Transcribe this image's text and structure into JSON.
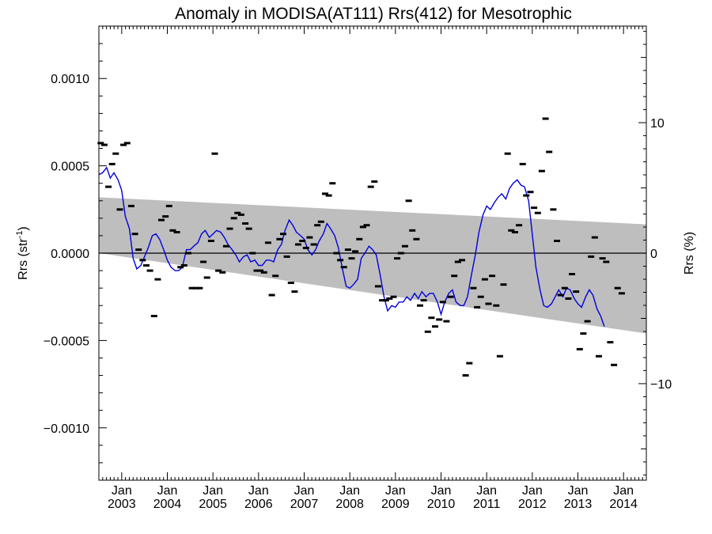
{
  "chart_data": {
    "type": "scatter",
    "title": "Anomaly in MODISA(AT111) Rrs(412) for Mesotrophic",
    "ylabel_left": {
      "base": "Rrs (str",
      "sup": "-1",
      "close": ")"
    },
    "ylabel_right": "Rrs (%)",
    "xlim": [
      2002.5,
      2014.5
    ],
    "ylim_left": [
      -0.0013,
      0.0013
    ],
    "ylim_right": [
      -17.4,
      17.4
    ],
    "x_ticks": [
      {
        "value": 2003.0,
        "month": "Jan",
        "year": "2003"
      },
      {
        "value": 2004.0,
        "month": "Jan",
        "year": "2004"
      },
      {
        "value": 2005.0,
        "month": "Jan",
        "year": "2005"
      },
      {
        "value": 2006.0,
        "month": "Jan",
        "year": "2006"
      },
      {
        "value": 2007.0,
        "month": "Jan",
        "year": "2007"
      },
      {
        "value": 2008.0,
        "month": "Jan",
        "year": "2008"
      },
      {
        "value": 2009.0,
        "month": "Jan",
        "year": "2009"
      },
      {
        "value": 2010.0,
        "month": "Jan",
        "year": "2010"
      },
      {
        "value": 2011.0,
        "month": "Jan",
        "year": "2011"
      },
      {
        "value": 2012.0,
        "month": "Jan",
        "year": "2012"
      },
      {
        "value": 2013.0,
        "month": "Jan",
        "year": "2013"
      },
      {
        "value": 2014.0,
        "month": "Jan",
        "year": "2014"
      }
    ],
    "y_ticks_left": [
      {
        "value": 0.001,
        "label": "0.0010"
      },
      {
        "value": 0.0005,
        "label": "0.0005"
      },
      {
        "value": 0.0,
        "label": "0.0000"
      },
      {
        "value": -0.0005,
        "label": "−0.0005"
      },
      {
        "value": -0.001,
        "label": "−0.0010"
      }
    ],
    "y_ticks_right": [
      {
        "value": 10,
        "label": "10"
      },
      {
        "value": 0,
        "label": "0"
      },
      {
        "value": -10,
        "label": "−10"
      }
    ],
    "reference_line": 0.0,
    "confidence_band": {
      "upper": [
        [
          2002.5,
          0.00032
        ],
        [
          2014.5,
          0.000165
        ]
      ],
      "lower": [
        [
          2002.5,
          0.0
        ],
        [
          2014.5,
          -0.00046
        ]
      ],
      "color": "#bebebe"
    },
    "colors": {
      "points": "#000000",
      "smooth": "#0000dd",
      "band": "#bebebe",
      "zero": "#000000"
    },
    "points": [
      [
        2002.54,
        0.00063
      ],
      [
        2002.62,
        0.00062
      ],
      [
        2002.71,
        0.00038
      ],
      [
        2002.79,
        0.00051
      ],
      [
        2002.87,
        0.00057
      ],
      [
        2002.96,
        0.00025
      ],
      [
        2003.04,
        0.00062
      ],
      [
        2003.12,
        0.00063
      ],
      [
        2003.21,
        0.00027
      ],
      [
        2003.29,
        0.00011
      ],
      [
        2003.37,
        2e-05
      ],
      [
        2003.46,
        -4e-05
      ],
      [
        2003.54,
        -7e-05
      ],
      [
        2003.62,
        -0.0001
      ],
      [
        2003.71,
        -0.00036
      ],
      [
        2003.79,
        -0.00015
      ],
      [
        2003.87,
        0.00019
      ],
      [
        2003.96,
        0.00021
      ],
      [
        2004.04,
        0.00027
      ],
      [
        2004.12,
        0.00013
      ],
      [
        2004.21,
        0.00012
      ],
      [
        2004.29,
        -8e-05
      ],
      [
        2004.37,
        -7e-05
      ],
      [
        2004.46,
        0.0
      ],
      [
        2004.54,
        -0.0002
      ],
      [
        2004.62,
        -0.0002
      ],
      [
        2004.71,
        -0.0002
      ],
      [
        2004.79,
        -5e-05
      ],
      [
        2004.87,
        -0.00014
      ],
      [
        2004.96,
        7e-05
      ],
      [
        2005.04,
        0.00057
      ],
      [
        2005.12,
        -0.0001
      ],
      [
        2005.21,
        -0.00011
      ],
      [
        2005.29,
        4e-05
      ],
      [
        2005.37,
        0.00014
      ],
      [
        2005.46,
        0.0002
      ],
      [
        2005.54,
        0.00023
      ],
      [
        2005.62,
        0.00022
      ],
      [
        2005.71,
        0.00017
      ],
      [
        2005.79,
        0.00014
      ],
      [
        2005.87,
        0.0
      ],
      [
        2005.96,
        -0.0001
      ],
      [
        2006.04,
        -0.0001
      ],
      [
        2006.12,
        -0.00011
      ],
      [
        2006.21,
        6e-05
      ],
      [
        2006.29,
        -0.00024
      ],
      [
        2006.37,
        -0.00013
      ],
      [
        2006.46,
        8e-05
      ],
      [
        2006.54,
        0.00011
      ],
      [
        2006.62,
        -2e-05
      ],
      [
        2006.71,
        -0.00017
      ],
      [
        2006.79,
        -0.00022
      ],
      [
        2006.87,
        5e-05
      ],
      [
        2006.96,
        7e-05
      ],
      [
        2007.04,
        3e-05
      ],
      [
        2007.12,
        9e-05
      ],
      [
        2007.21,
        5e-05
      ],
      [
        2007.29,
        0.00016
      ],
      [
        2007.37,
        0.00018
      ],
      [
        2007.46,
        0.00034
      ],
      [
        2007.54,
        0.00033
      ],
      [
        2007.62,
        0.0004
      ],
      [
        2007.71,
        0.0
      ],
      [
        2007.79,
        -4e-05
      ],
      [
        2007.87,
        -8e-05
      ],
      [
        2007.96,
        2e-05
      ],
      [
        2008.04,
        -3e-05
      ],
      [
        2008.12,
        1e-05
      ],
      [
        2008.21,
        8e-05
      ],
      [
        2008.29,
        0.00015
      ],
      [
        2008.37,
        0.00016
      ],
      [
        2008.46,
        0.00038
      ],
      [
        2008.54,
        0.00041
      ],
      [
        2008.62,
        -0.00019
      ],
      [
        2008.71,
        -0.00027
      ],
      [
        2008.79,
        -0.00027
      ],
      [
        2008.87,
        -0.00026
      ],
      [
        2008.96,
        -0.00025
      ],
      [
        2009.04,
        -3e-05
      ],
      [
        2009.12,
        0.0
      ],
      [
        2009.21,
        4e-05
      ],
      [
        2009.29,
        0.0003
      ],
      [
        2009.37,
        0.00013
      ],
      [
        2009.46,
        8e-05
      ],
      [
        2009.54,
        -0.0003
      ],
      [
        2009.62,
        -0.00027
      ],
      [
        2009.71,
        -0.00045
      ],
      [
        2009.79,
        -0.00037
      ],
      [
        2009.87,
        -0.00042
      ],
      [
        2009.96,
        -0.00038
      ],
      [
        2010.04,
        -0.00028
      ],
      [
        2010.12,
        -0.00039
      ],
      [
        2010.21,
        -0.00025
      ],
      [
        2010.29,
        -0.00013
      ],
      [
        2010.37,
        -5e-05
      ],
      [
        2010.46,
        -4e-05
      ],
      [
        2010.54,
        -0.0007
      ],
      [
        2010.62,
        -0.00063
      ],
      [
        2010.71,
        -0.0002
      ],
      [
        2010.79,
        -0.00031
      ],
      [
        2010.87,
        -0.00025
      ],
      [
        2010.96,
        -0.00015
      ],
      [
        2011.04,
        -0.00029
      ],
      [
        2011.12,
        -0.00013
      ],
      [
        2011.21,
        -0.0003
      ],
      [
        2011.29,
        -0.00059
      ],
      [
        2011.37,
        -0.00018
      ],
      [
        2011.46,
        0.00057
      ],
      [
        2011.54,
        0.00013
      ],
      [
        2011.62,
        0.00012
      ],
      [
        2011.71,
        0.00016
      ],
      [
        2011.79,
        0.00051
      ],
      [
        2011.87,
        0.00033
      ],
      [
        2011.96,
        0.00035
      ],
      [
        2012.04,
        0.00026
      ],
      [
        2012.12,
        0.00023
      ],
      [
        2012.21,
        0.00047
      ],
      [
        2012.29,
        0.00077
      ],
      [
        2012.37,
        0.00058
      ],
      [
        2012.46,
        0.00025
      ],
      [
        2012.54,
        7e-05
      ],
      [
        2012.62,
        -0.00024
      ],
      [
        2012.71,
        -0.0002
      ],
      [
        2012.79,
        -0.00026
      ],
      [
        2012.87,
        -0.00012
      ],
      [
        2012.96,
        -0.00022
      ],
      [
        2013.04,
        -0.00055
      ],
      [
        2013.12,
        -0.00046
      ],
      [
        2013.21,
        -0.00039
      ],
      [
        2013.29,
        -2e-05
      ],
      [
        2013.37,
        9e-05
      ],
      [
        2013.46,
        -0.00059
      ],
      [
        2013.54,
        -3e-05
      ],
      [
        2013.62,
        -5e-05
      ],
      [
        2013.71,
        -0.00051
      ],
      [
        2013.79,
        -0.00064
      ],
      [
        2013.87,
        -0.0002
      ],
      [
        2013.96,
        -0.00023
      ]
    ],
    "smooth": [
      [
        2002.5,
        0.00045
      ],
      [
        2002.58,
        0.00046
      ],
      [
        2002.67,
        0.00049
      ],
      [
        2002.75,
        0.00043
      ],
      [
        2002.83,
        0.00046
      ],
      [
        2002.92,
        0.00042
      ],
      [
        2003.0,
        0.00036
      ],
      [
        2003.08,
        0.00021
      ],
      [
        2003.17,
        0.00014
      ],
      [
        2003.25,
        -3e-05
      ],
      [
        2003.33,
        -9e-05
      ],
      [
        2003.42,
        -7e-05
      ],
      [
        2003.5,
        -2e-05
      ],
      [
        2003.58,
        3e-05
      ],
      [
        2003.67,
        0.0001
      ],
      [
        2003.75,
        0.00011
      ],
      [
        2003.83,
        8e-05
      ],
      [
        2003.92,
        2e-05
      ],
      [
        2004.0,
        -4e-05
      ],
      [
        2004.08,
        -8e-05
      ],
      [
        2004.17,
        -0.0001
      ],
      [
        2004.25,
        -0.0001
      ],
      [
        2004.33,
        -8e-05
      ],
      [
        2004.42,
        2e-05
      ],
      [
        2004.5,
        2e-05
      ],
      [
        2004.58,
        4e-05
      ],
      [
        2004.67,
        6e-05
      ],
      [
        2004.75,
        0.00011
      ],
      [
        2004.83,
        0.00013
      ],
      [
        2004.92,
        9e-05
      ],
      [
        2005.0,
        0.00011
      ],
      [
        2005.08,
        0.00013
      ],
      [
        2005.17,
        0.00012
      ],
      [
        2005.25,
        9e-05
      ],
      [
        2005.33,
        5e-05
      ],
      [
        2005.42,
        2e-05
      ],
      [
        2005.5,
        -1e-05
      ],
      [
        2005.58,
        -5e-05
      ],
      [
        2005.67,
        -2e-05
      ],
      [
        2005.75,
        -1e-05
      ],
      [
        2005.83,
        -5e-05
      ],
      [
        2005.92,
        -4e-05
      ],
      [
        2006.0,
        -7e-05
      ],
      [
        2006.08,
        -7e-05
      ],
      [
        2006.17,
        -4e-05
      ],
      [
        2006.25,
        -4e-05
      ],
      [
        2006.33,
        -5e-05
      ],
      [
        2006.42,
        2e-05
      ],
      [
        2006.5,
        5e-05
      ],
      [
        2006.58,
        0.00013
      ],
      [
        2006.67,
        0.00019
      ],
      [
        2006.75,
        0.00016
      ],
      [
        2006.83,
        0.00012
      ],
      [
        2006.92,
        0.0001
      ],
      [
        2007.0,
        8e-05
      ],
      [
        2007.08,
        2e-05
      ],
      [
        2007.17,
        -1e-05
      ],
      [
        2007.25,
        2e-05
      ],
      [
        2007.33,
        7e-05
      ],
      [
        2007.42,
        0.00011
      ],
      [
        2007.5,
        0.00017
      ],
      [
        2007.58,
        0.00014
      ],
      [
        2007.67,
        0.0001
      ],
      [
        2007.75,
        3e-05
      ],
      [
        2007.83,
        -8e-05
      ],
      [
        2007.92,
        -0.00019
      ],
      [
        2008.0,
        -0.0002
      ],
      [
        2008.08,
        -0.00018
      ],
      [
        2008.17,
        -0.00015
      ],
      [
        2008.25,
        -3e-05
      ],
      [
        2008.33,
        0.0
      ],
      [
        2008.42,
        4e-05
      ],
      [
        2008.5,
        2e-05
      ],
      [
        2008.58,
        -1e-05
      ],
      [
        2008.67,
        -0.00013
      ],
      [
        2008.75,
        -0.00025
      ],
      [
        2008.83,
        -0.00033
      ],
      [
        2008.92,
        -0.0003
      ],
      [
        2009.0,
        -0.00031
      ],
      [
        2009.08,
        -0.00028
      ],
      [
        2009.17,
        -0.00028
      ],
      [
        2009.25,
        -0.00025
      ],
      [
        2009.33,
        -0.00027
      ],
      [
        2009.42,
        -0.00023
      ],
      [
        2009.5,
        -0.00026
      ],
      [
        2009.58,
        -0.00022
      ],
      [
        2009.67,
        -0.00025
      ],
      [
        2009.75,
        -0.00023
      ],
      [
        2009.83,
        -0.00023
      ],
      [
        2009.92,
        -0.00028
      ],
      [
        2010.0,
        -0.00035
      ],
      [
        2010.08,
        -0.00028
      ],
      [
        2010.17,
        -0.00023
      ],
      [
        2010.25,
        -0.00021
      ],
      [
        2010.33,
        -0.00028
      ],
      [
        2010.42,
        -0.0003
      ],
      [
        2010.5,
        -0.0003
      ],
      [
        2010.58,
        -0.00025
      ],
      [
        2010.67,
        -0.00012
      ],
      [
        2010.75,
        -1e-05
      ],
      [
        2010.83,
        0.00012
      ],
      [
        2010.92,
        0.00022
      ],
      [
        2011.0,
        0.00027
      ],
      [
        2011.08,
        0.00025
      ],
      [
        2011.17,
        0.00029
      ],
      [
        2011.25,
        0.00032
      ],
      [
        2011.33,
        0.00034
      ],
      [
        2011.42,
        0.00031
      ],
      [
        2011.5,
        0.00037
      ],
      [
        2011.58,
        0.0004
      ],
      [
        2011.67,
        0.00042
      ],
      [
        2011.75,
        0.00039
      ],
      [
        2011.83,
        0.00038
      ],
      [
        2011.92,
        0.0003
      ],
      [
        2012.0,
        0.00011
      ],
      [
        2012.08,
        -8e-05
      ],
      [
        2012.17,
        -0.00021
      ],
      [
        2012.25,
        -0.0003
      ],
      [
        2012.33,
        -0.00031
      ],
      [
        2012.42,
        -0.00029
      ],
      [
        2012.5,
        -0.00025
      ],
      [
        2012.58,
        -0.00021
      ],
      [
        2012.67,
        -0.00025
      ],
      [
        2012.75,
        -0.0002
      ],
      [
        2012.83,
        -0.00021
      ],
      [
        2012.92,
        -0.00026
      ],
      [
        2013.0,
        -0.00029
      ],
      [
        2013.08,
        -0.00031
      ],
      [
        2013.17,
        -0.00025
      ],
      [
        2013.25,
        -0.00021
      ],
      [
        2013.33,
        -0.00024
      ],
      [
        2013.42,
        -0.00032
      ],
      [
        2013.5,
        -0.00036
      ],
      [
        2013.58,
        -0.00042
      ]
    ]
  }
}
